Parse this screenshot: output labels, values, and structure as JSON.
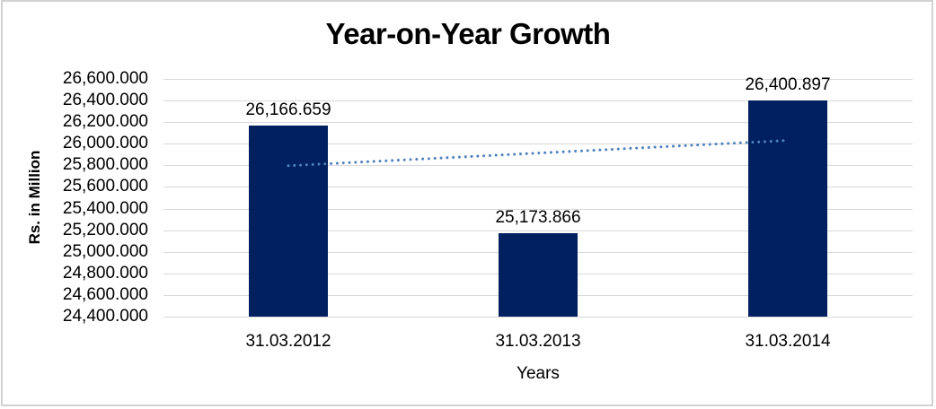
{
  "chart_data": {
    "type": "bar",
    "title": "Year-on-Year Growth",
    "ylabel": "Rs. in Million",
    "xlabel": "Years",
    "categories": [
      "31.03.2012",
      "31.03.2013",
      "31.03.2014"
    ],
    "values": [
      26166.659,
      25173.866,
      26400.897
    ],
    "data_labels": [
      "26,166.659",
      "25,173.866",
      "26,400.897"
    ],
    "ylim": [
      24400,
      26600
    ],
    "ytick_step": 200,
    "ytick_labels": [
      "26,600.000",
      "26,400.000",
      "26,200.000",
      "26,000.000",
      "25,800.000",
      "25,600.000",
      "25,400.000",
      "25,200.000",
      "25,000.000",
      "24,800.000",
      "24,600.000",
      "24,400.000"
    ],
    "grid": "horizontal",
    "legend": "none",
    "trendline": {
      "type": "linear",
      "style": "dotted"
    },
    "colors": {
      "bar": "#002060",
      "trendline": "#4F81BD",
      "gridline": "#D9D9D9",
      "frame_border": "#D2D2D2",
      "text": "#000000"
    }
  }
}
